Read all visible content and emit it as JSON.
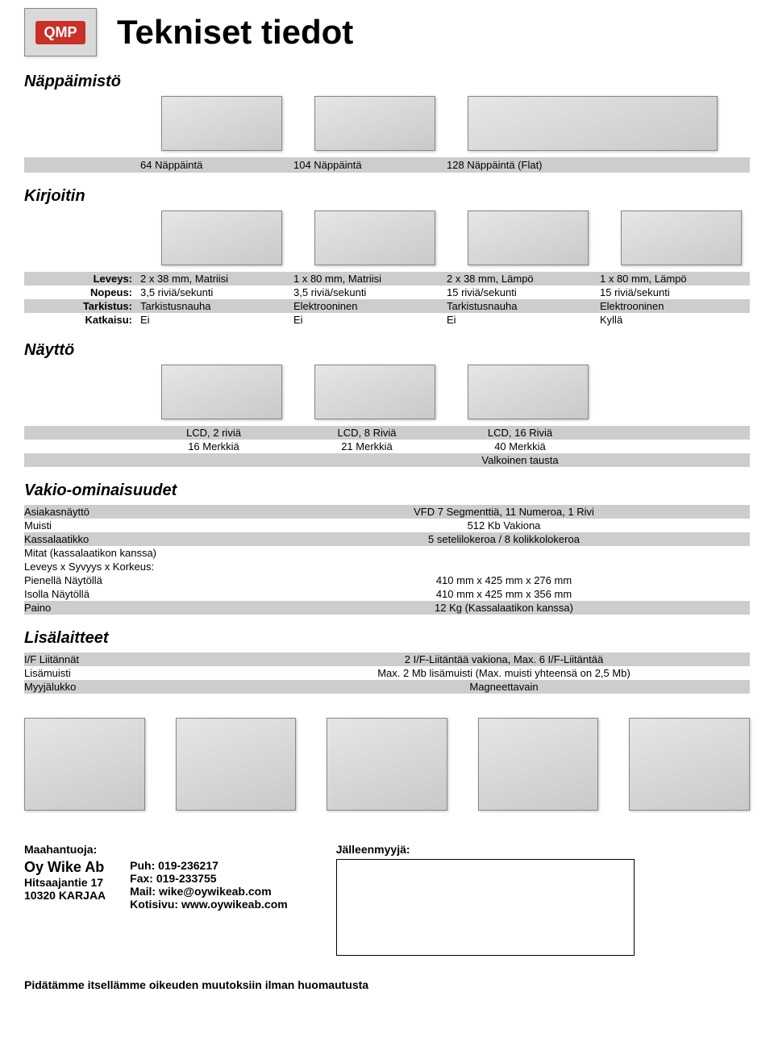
{
  "logo": {
    "text": "QMP"
  },
  "title": "Tekniset tiedot",
  "sections": {
    "keyboard": "Näppäimistö",
    "printer": "Kirjoitin",
    "display": "Näyttö",
    "standard": "Vakio-ominaisuudet",
    "accessories": "Lisälaitteet"
  },
  "keyboard_headers": [
    "64 Näppäintä",
    "104 Näppäintä",
    "128 Näppäintä (Flat)"
  ],
  "printer_specs": [
    {
      "label": "Leveys:",
      "shade": true,
      "cols": [
        "2 x 38 mm, Matriisi",
        "1 x 80 mm, Matriisi",
        "2  x 38 mm, Lämpö",
        "1 x 80 mm, Lämpö"
      ]
    },
    {
      "label": "Nopeus:",
      "shade": false,
      "cols": [
        "3,5 riviä/sekunti",
        "3,5 riviä/sekunti",
        "15 riviä/sekunti",
        "15 riviä/sekunti"
      ]
    },
    {
      "label": "Tarkistus:",
      "shade": true,
      "cols": [
        "Tarkistusnauha",
        "Elektrooninen",
        "Tarkistusnauha",
        "Elektrooninen"
      ]
    },
    {
      "label": "Katkaisu:",
      "shade": false,
      "cols": [
        "Ei",
        "Ei",
        "Ei",
        "Kyllä"
      ]
    }
  ],
  "display_specs": [
    {
      "shade": true,
      "cols": [
        "LCD, 2 riviä",
        "LCD, 8 Riviä",
        "LCD, 16 Riviä"
      ]
    },
    {
      "shade": false,
      "cols": [
        "16 Merkkiä",
        "21 Merkkiä",
        "40 Merkkiä"
      ]
    },
    {
      "shade": true,
      "cols": [
        "",
        "",
        "Valkoinen tausta"
      ]
    }
  ],
  "features": [
    {
      "label": "Asiakasnäyttö",
      "value": "VFD 7 Segmenttiä, 11 Numeroa, 1 Rivi",
      "shade": true
    },
    {
      "label": "Muisti",
      "value": "512 Kb Vakiona",
      "shade": false
    },
    {
      "label": "Kassalaatikko",
      "value": "5 setelilokeroa / 8 kolikkolokeroa",
      "shade": true
    },
    {
      "label": "Mitat (kassalaatikon kanssa)",
      "value": "",
      "shade": false
    },
    {
      "label": "Leveys x Syvyys x Korkeus:",
      "value": "",
      "shade": false
    },
    {
      "label": "Pienellä Näytöllä",
      "value": "410 mm x 425 mm x 276 mm",
      "shade": false
    },
    {
      "label": "Isolla Näytöllä",
      "value": "410 mm x 425 mm x 356 mm",
      "shade": false
    },
    {
      "label": "Paino",
      "value": "12 Kg (Kassalaatikon kanssa)",
      "shade": true
    }
  ],
  "accessories_specs": [
    {
      "label": "I/F Liitännät",
      "value": "2 I/F-Liitäntää vakiona, Max. 6 I/F-Liitäntää",
      "shade": true
    },
    {
      "label": "Lisämuisti",
      "value": "Max. 2 Mb lisämuisti (Max. muisti yhteensä on 2,5 Mb)",
      "shade": false
    },
    {
      "label": "Myyjälukko",
      "value": "Magneettavain",
      "shade": true
    }
  ],
  "importer": {
    "head": "Maahantuoja:",
    "name": "Oy Wike Ab",
    "addr1": "Hitsaajantie 17",
    "addr2": "10320 KARJAA",
    "phone": "Puh: 019-236217",
    "fax": "Fax: 019-233755",
    "mail": "Mail: wike@oywikeab.com",
    "web": "Kotisivu: www.oywikeab.com"
  },
  "reseller": {
    "head": "Jälleenmyyjä:"
  },
  "footnote": "Pidätämme itsellämme oikeuden muutoksiin ilman  huomautusta"
}
